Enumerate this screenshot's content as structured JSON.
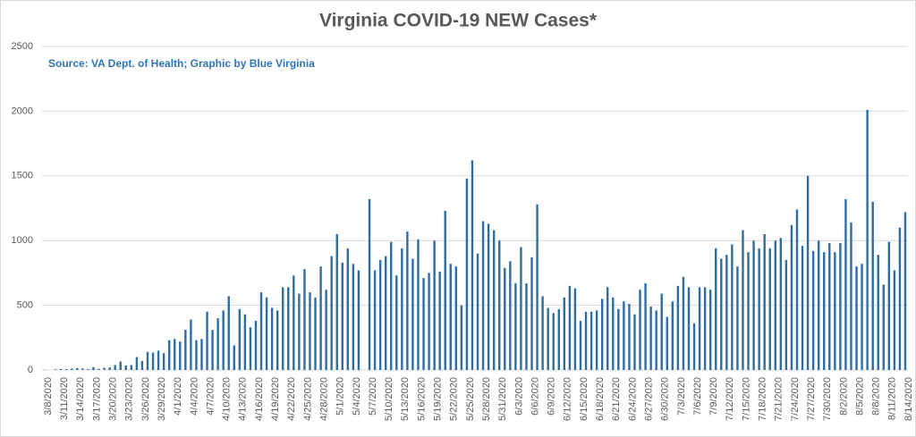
{
  "chart_data": {
    "type": "bar",
    "title": "Virginia COVID-19 NEW Cases*",
    "subtitle": "Source: VA Dept. of Health; Graphic by Blue Virginia",
    "color": "#2e6da4",
    "grid": true,
    "ylim": [
      0,
      2500
    ],
    "yticks": [
      0,
      500,
      1000,
      1500,
      2000,
      2500
    ],
    "categories": [
      "3/8/2020",
      null,
      null,
      "3/11/2020",
      null,
      null,
      "3/14/2020",
      null,
      null,
      "3/17/2020",
      null,
      null,
      "3/20/2020",
      null,
      null,
      "3/23/2020",
      null,
      null,
      "3/26/2020",
      null,
      null,
      "3/29/2020",
      null,
      null,
      "4/1/2020",
      null,
      null,
      "4/4/2020",
      null,
      null,
      "4/7/2020",
      null,
      null,
      "4/10/2020",
      null,
      null,
      "4/13/2020",
      null,
      null,
      "4/16/2020",
      null,
      null,
      "4/19/2020",
      null,
      null,
      "4/22/2020",
      null,
      null,
      "4/25/2020",
      null,
      null,
      "4/28/2020",
      null,
      null,
      "5/1/2020",
      null,
      null,
      "5/4/2020",
      null,
      null,
      "5/7/2020",
      null,
      null,
      "5/10/2020",
      null,
      null,
      "5/13/2020",
      null,
      null,
      "5/16/2020",
      null,
      null,
      "5/19/2020",
      null,
      null,
      "5/22/2020",
      null,
      null,
      "5/25/2020",
      null,
      null,
      "5/28/2020",
      null,
      null,
      "5/31/2020",
      null,
      null,
      "6/3/2020",
      null,
      null,
      "6/6/2020",
      null,
      null,
      "6/9/2020",
      null,
      null,
      "6/12/2020",
      null,
      null,
      "6/15/2020",
      null,
      null,
      "6/18/2020",
      null,
      null,
      "6/21/2020",
      null,
      null,
      "6/24/2020",
      null,
      null,
      "6/27/2020",
      null,
      null,
      "6/30/2020",
      null,
      null,
      "7/3/2020",
      null,
      null,
      "7/6/2020",
      null,
      null,
      "7/9/2020",
      null,
      null,
      "7/12/2020",
      null,
      null,
      "7/15/2020",
      null,
      null,
      "7/18/2020",
      null,
      null,
      "7/21/2020",
      null,
      null,
      "7/24/2020",
      null,
      null,
      "7/27/2020",
      null,
      null,
      "7/30/2020",
      null,
      null,
      "8/2/2020",
      null,
      null,
      "8/5/2020",
      null,
      null,
      "8/8/2020",
      null,
      null,
      "8/11/2020",
      null,
      null,
      "8/14/2020"
    ],
    "values": [
      2,
      0,
      5,
      8,
      7,
      11,
      15,
      11,
      6,
      22,
      10,
      17,
      20,
      38,
      66,
      35,
      38,
      100,
      70,
      140,
      135,
      150,
      130,
      230,
      240,
      220,
      310,
      390,
      230,
      240,
      450,
      310,
      400,
      460,
      570,
      190,
      470,
      430,
      330,
      380,
      600,
      560,
      480,
      460,
      640,
      640,
      730,
      590,
      780,
      600,
      560,
      800,
      620,
      880,
      1050,
      830,
      940,
      820,
      770,
      0,
      1320,
      770,
      850,
      880,
      990,
      730,
      940,
      1070,
      860,
      1010,
      710,
      750,
      1000,
      760,
      1230,
      820,
      800,
      500,
      1480,
      1620,
      900,
      1150,
      1130,
      1080,
      1000,
      790,
      840,
      670,
      950,
      670,
      870,
      1280,
      570,
      480,
      440,
      470,
      560,
      650,
      630,
      380,
      450,
      450,
      460,
      550,
      640,
      560,
      470,
      530,
      510,
      430,
      620,
      670,
      490,
      460,
      590,
      410,
      530,
      650,
      720,
      640,
      360,
      640,
      640,
      620,
      940,
      860,
      890,
      970,
      800,
      1080,
      910,
      1000,
      940,
      1050,
      940,
      1000,
      1020,
      850,
      1120,
      1240,
      960,
      1500,
      920,
      1000,
      910,
      980,
      910,
      980,
      1320,
      1140,
      800,
      820,
      2010,
      1300,
      890,
      660,
      990,
      770,
      1100,
      1220
    ]
  }
}
